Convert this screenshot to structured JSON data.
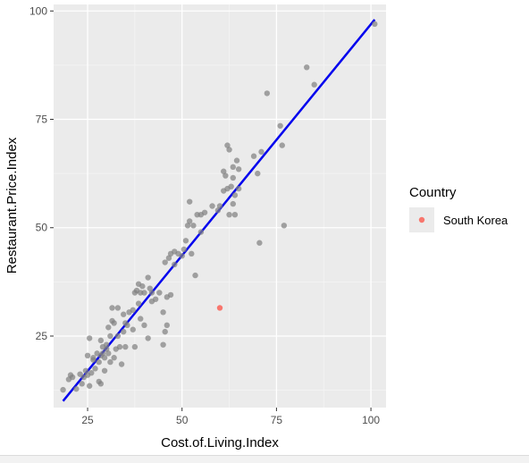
{
  "chart_data": {
    "type": "scatter",
    "xlabel": "Cost.of.Living.Index",
    "ylabel": "Restaurant.Price.Index",
    "xlim": [
      16,
      104
    ],
    "ylim": [
      8.5,
      101.5
    ],
    "x_ticks": [
      25,
      50,
      75,
      100
    ],
    "y_ticks": [
      25,
      50,
      75,
      100
    ],
    "grid": true,
    "legend": {
      "title": "Country",
      "entries": [
        {
          "label": "South Korea",
          "color": "#f8766d"
        }
      ],
      "placement": "right"
    },
    "series": [
      {
        "kind": "points",
        "color": "#7f7f7f",
        "points": [
          [
            18.5,
            12.6
          ],
          [
            20.0,
            15.0
          ],
          [
            20.5,
            16.0
          ],
          [
            21.0,
            15.5
          ],
          [
            22.0,
            12.8
          ],
          [
            23.0,
            16.2
          ],
          [
            23.5,
            14.0
          ],
          [
            24.0,
            15.5
          ],
          [
            24.5,
            17.0
          ],
          [
            25.0,
            16.0
          ],
          [
            25.0,
            20.5
          ],
          [
            25.5,
            13.5
          ],
          [
            25.5,
            24.5
          ],
          [
            26.0,
            16.5
          ],
          [
            26.5,
            19.5
          ],
          [
            26.5,
            20.0
          ],
          [
            27.0,
            17.5
          ],
          [
            27.5,
            21.0
          ],
          [
            28.0,
            14.5
          ],
          [
            28.0,
            19.0
          ],
          [
            28.5,
            20.5
          ],
          [
            28.5,
            24.0
          ],
          [
            28.5,
            14.0
          ],
          [
            29.0,
            21.0
          ],
          [
            29.0,
            22.5
          ],
          [
            29.5,
            20.0
          ],
          [
            29.5,
            17.0
          ],
          [
            30.0,
            22.0
          ],
          [
            30.0,
            23.0
          ],
          [
            30.5,
            27.0
          ],
          [
            30.5,
            21.0
          ],
          [
            31.0,
            25.0
          ],
          [
            31.0,
            19.0
          ],
          [
            31.5,
            28.5
          ],
          [
            31.5,
            31.5
          ],
          [
            32.0,
            20.0
          ],
          [
            32.0,
            28.0
          ],
          [
            32.5,
            22.0
          ],
          [
            33.0,
            25.0
          ],
          [
            33.0,
            31.5
          ],
          [
            33.5,
            22.5
          ],
          [
            34.0,
            18.5
          ],
          [
            34.5,
            30.0
          ],
          [
            34.5,
            26.0
          ],
          [
            35.0,
            28.0
          ],
          [
            35.0,
            22.5
          ],
          [
            35.5,
            27.5
          ],
          [
            36.0,
            30.5
          ],
          [
            37.0,
            26.5
          ],
          [
            37.0,
            31.0
          ],
          [
            37.5,
            35.0
          ],
          [
            37.5,
            22.5
          ],
          [
            38.0,
            35.5
          ],
          [
            38.5,
            37.0
          ],
          [
            38.5,
            32.5
          ],
          [
            39.0,
            29.0
          ],
          [
            39.0,
            35.0
          ],
          [
            39.5,
            36.5
          ],
          [
            40.0,
            27.5
          ],
          [
            40.0,
            35.0
          ],
          [
            41.0,
            38.5
          ],
          [
            41.0,
            24.5
          ],
          [
            41.5,
            36.0
          ],
          [
            42.0,
            35.0
          ],
          [
            42.0,
            33.0
          ],
          [
            43.0,
            33.5
          ],
          [
            44.0,
            35.0
          ],
          [
            45.0,
            30.5
          ],
          [
            45.0,
            23.0
          ],
          [
            45.5,
            42.0
          ],
          [
            45.5,
            26.0
          ],
          [
            46.0,
            34.0
          ],
          [
            46.0,
            27.5
          ],
          [
            46.5,
            43.0
          ],
          [
            47.0,
            34.5
          ],
          [
            47.0,
            44.0
          ],
          [
            48.0,
            44.5
          ],
          [
            48.0,
            41.5
          ],
          [
            49.0,
            44.0
          ],
          [
            50.0,
            43.5
          ],
          [
            50.5,
            45.0
          ],
          [
            51.0,
            47.0
          ],
          [
            51.5,
            50.5
          ],
          [
            52.0,
            51.5
          ],
          [
            52.0,
            56.0
          ],
          [
            52.5,
            44.0
          ],
          [
            53.0,
            50.5
          ],
          [
            53.5,
            39.0
          ],
          [
            54.0,
            53.0
          ],
          [
            55.0,
            49.0
          ],
          [
            55.0,
            53.0
          ],
          [
            56.0,
            53.5
          ],
          [
            58.0,
            55.0
          ],
          [
            59.5,
            54.0
          ],
          [
            60.0,
            55.0
          ],
          [
            61.0,
            63.0
          ],
          [
            61.0,
            58.5
          ],
          [
            61.5,
            62.0
          ],
          [
            62.0,
            69.0
          ],
          [
            62.0,
            59.0
          ],
          [
            62.5,
            68.0
          ],
          [
            62.5,
            53.0
          ],
          [
            63.0,
            59.5
          ],
          [
            63.5,
            64.0
          ],
          [
            63.5,
            61.5
          ],
          [
            63.5,
            55.5
          ],
          [
            64.0,
            57.5
          ],
          [
            64.0,
            53.0
          ],
          [
            64.5,
            65.5
          ],
          [
            65.0,
            63.5
          ],
          [
            65.0,
            59.0
          ],
          [
            69.0,
            66.5
          ],
          [
            70.0,
            62.5
          ],
          [
            70.5,
            46.5
          ],
          [
            71.0,
            67.5
          ],
          [
            72.5,
            81.0
          ],
          [
            76.0,
            73.5
          ],
          [
            76.5,
            69.0
          ],
          [
            77.0,
            50.5
          ],
          [
            83.0,
            87.0
          ],
          [
            85.0,
            83.0
          ],
          [
            101.0,
            97.0
          ]
        ]
      },
      {
        "name": "South Korea",
        "kind": "points",
        "color": "#f8766d",
        "points": [
          [
            60.0,
            31.5
          ]
        ]
      },
      {
        "kind": "fit-line",
        "color": "#0000ee",
        "points": [
          [
            18.5,
            10.0
          ],
          [
            101.0,
            98.0
          ]
        ]
      }
    ]
  }
}
